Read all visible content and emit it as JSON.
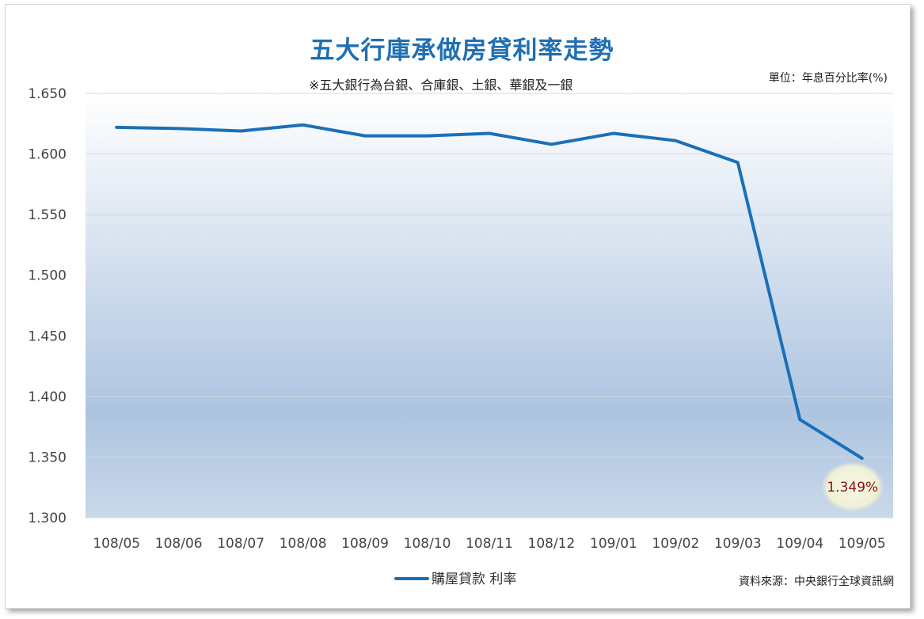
{
  "chart_data": {
    "type": "line",
    "title": "五大行庫承做房貸利率走勢",
    "subtitle": "※五大銀行為台銀、合庫銀、土銀、華銀及一銀",
    "unit_label": "單位：年息百分比率(%)",
    "source": "資料來源：中央銀行全球資訊網",
    "categories": [
      "108/05",
      "108/06",
      "108/07",
      "108/08",
      "108/09",
      "108/10",
      "108/11",
      "108/12",
      "109/01",
      "109/02",
      "109/03",
      "109/04",
      "109/05"
    ],
    "series": [
      {
        "name": "購屋貸款 利率",
        "values": [
          1.622,
          1.621,
          1.619,
          1.624,
          1.615,
          1.615,
          1.617,
          1.608,
          1.617,
          1.611,
          1.593,
          1.381,
          1.349
        ],
        "color": "#1a70b8"
      }
    ],
    "ylim": [
      1.3,
      1.65
    ],
    "yticks": [
      "1.300",
      "1.350",
      "1.400",
      "1.450",
      "1.500",
      "1.550",
      "1.600",
      "1.650"
    ],
    "annotation": {
      "label": "1.349%",
      "category": "109/05",
      "value": 1.349
    },
    "grid": true,
    "legend_position": "bottom"
  }
}
